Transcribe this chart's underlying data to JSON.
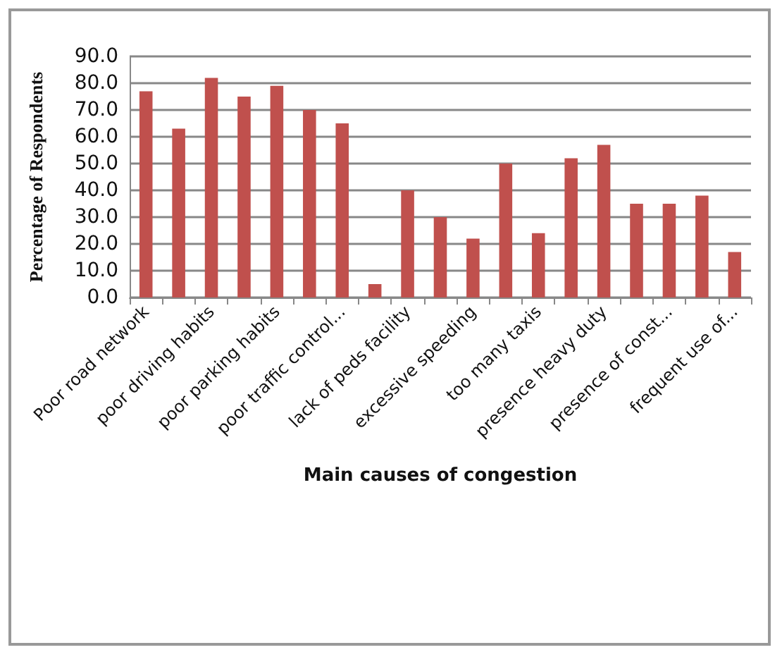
{
  "chart_data": {
    "type": "bar",
    "xlabel": "Main causes of congestion",
    "ylabel": "Percentage of Respondents",
    "categories": [
      "Poor road network",
      null,
      "poor driving habits",
      null,
      "poor parking habits",
      null,
      "poor traffic control...",
      null,
      "lack of peds facility",
      null,
      "excessive speeding",
      null,
      "too many taxis",
      null,
      "presence heavy duty",
      null,
      "presence of const...",
      null,
      "frequent use of..."
    ],
    "values": [
      77,
      63,
      82,
      75,
      79,
      70,
      65,
      5,
      40,
      30,
      22,
      50,
      24,
      52,
      57,
      35,
      35,
      38,
      17
    ],
    "color": "#c0504d",
    "ylim": [
      0,
      90
    ],
    "yticks": [
      {
        "value": 0,
        "label": "0.0"
      },
      {
        "value": 10,
        "label": "10.0"
      },
      {
        "value": 20,
        "label": "20.0"
      },
      {
        "value": 30,
        "label": "30.0"
      },
      {
        "value": 40,
        "label": "40.0"
      },
      {
        "value": 50,
        "label": "50.0"
      },
      {
        "value": 60,
        "label": "60.0"
      },
      {
        "value": 70,
        "label": "70.0"
      },
      {
        "value": 80,
        "label": "80.0"
      },
      {
        "value": 90,
        "label": "90.0"
      }
    ],
    "grid": "y"
  }
}
